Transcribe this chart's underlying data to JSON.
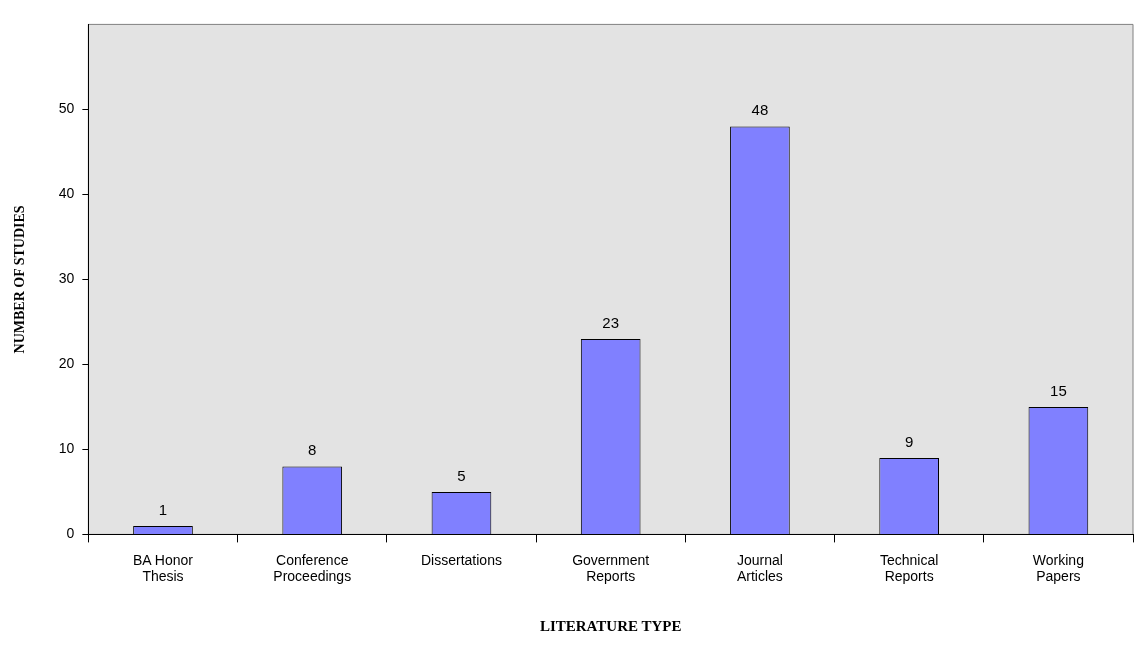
{
  "chart_data": {
    "type": "bar",
    "xlabel": "LITERATURE TYPE",
    "ylabel": "NUMBER OF STUDIES",
    "categories": [
      "BA Honor Thesis",
      "Conference Proceedings",
      "Dissertations",
      "Government Reports",
      "Journal Articles",
      "Technical Reports",
      "Working Papers"
    ],
    "values": [
      1,
      8,
      5,
      23,
      48,
      9,
      15
    ],
    "color": "#8080ff",
    "ylim": [
      0,
      60
    ],
    "yticks": [
      0,
      10,
      20,
      30,
      40,
      50
    ],
    "grid": false,
    "legend": false,
    "data_labels": true
  }
}
